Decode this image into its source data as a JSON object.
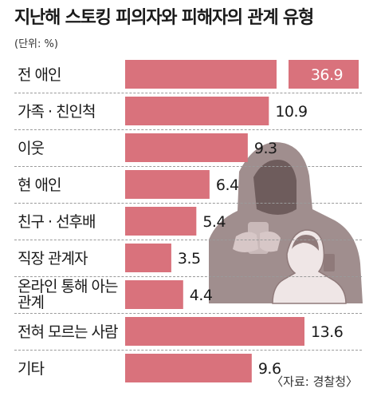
{
  "title": "지난해 스토킹 피의자와 피해자의 관계 유형",
  "unit": "(단위: %)",
  "source": "〈자료: 경찰청〉",
  "colors": {
    "bar": "#d9727c",
    "label_on_bar": "#ffffff",
    "text": "#1a1a1a"
  },
  "chart_data": {
    "type": "bar",
    "orientation": "horizontal",
    "categories": [
      "전 애인",
      "가족·친인척",
      "이웃",
      "현 애인",
      "친구·선후배",
      "직장 관계자",
      "온라인 통해 아는 관계",
      "전혀 모르는 사람",
      "기타"
    ],
    "category_lines": [
      [
        "전 애인"
      ],
      [
        "가족 · 친인척"
      ],
      [
        "이웃"
      ],
      [
        "현 애인"
      ],
      [
        "친구 · 선후배"
      ],
      [
        "직장 관계자"
      ],
      [
        "온라인 통해 아는",
        "관계"
      ],
      [
        "전혀 모르는 사람"
      ],
      [
        "기타"
      ]
    ],
    "values": [
      36.9,
      10.9,
      9.3,
      6.4,
      5.4,
      3.5,
      4.4,
      13.6,
      9.6
    ],
    "value_labels": [
      "36.9",
      "10.9",
      "9.3",
      "6.4",
      "5.4",
      "3.5",
      "4.4",
      "13.6",
      "9.6"
    ]
  },
  "illustration": "hooded-stalker-and-person-with-phone-illustration"
}
